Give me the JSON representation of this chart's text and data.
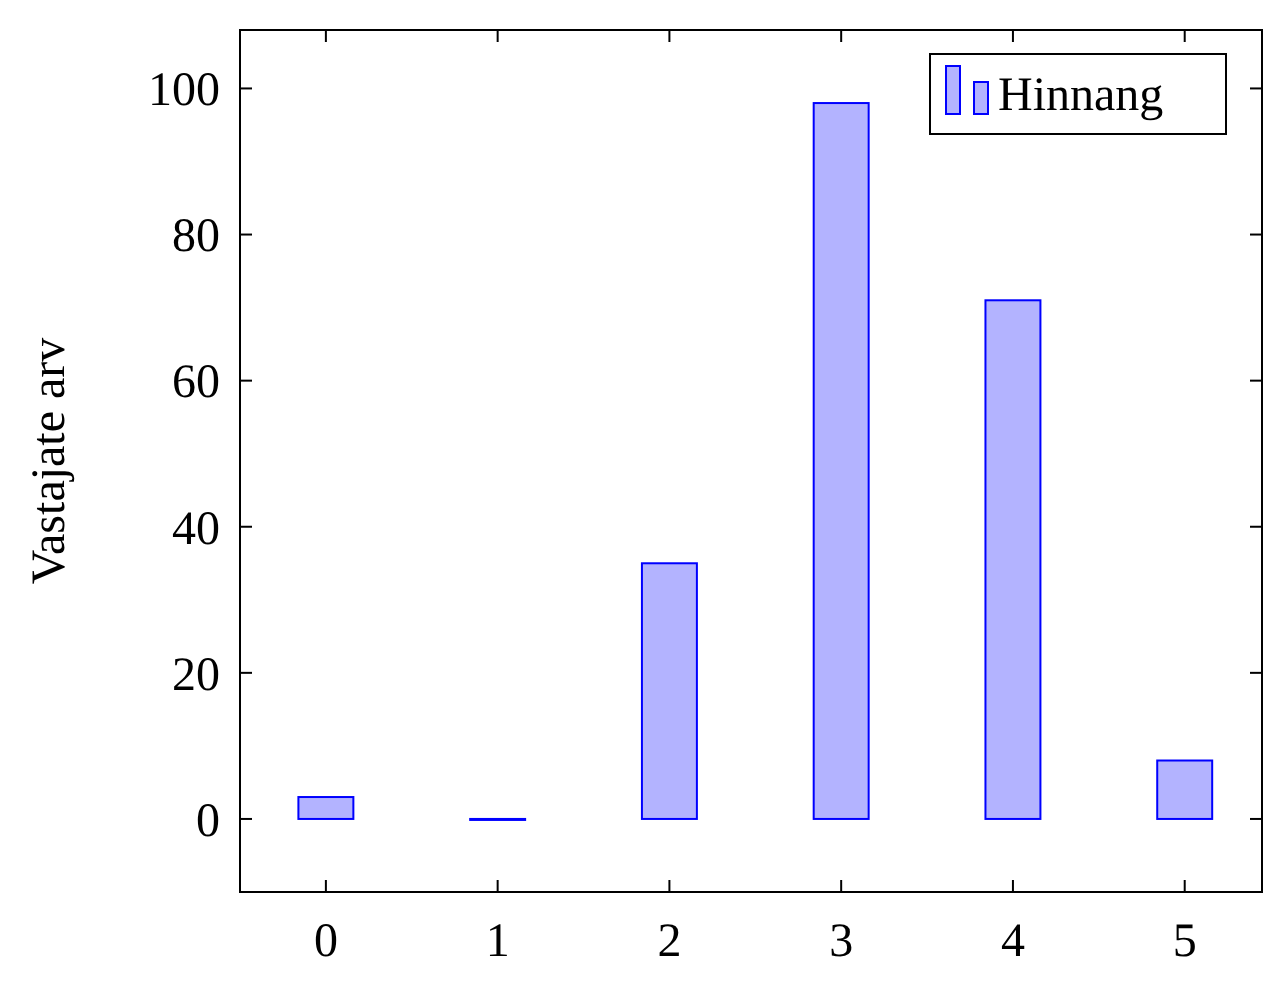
{
  "chart_data": {
    "type": "bar",
    "ylabel": "Vastajate arv",
    "x": [
      0,
      1,
      2,
      3,
      4,
      5
    ],
    "series": [
      {
        "name": "Hinnang",
        "color": "#b3b3ff",
        "values": [
          3,
          0,
          35,
          98,
          71,
          8
        ]
      }
    ],
    "xlim": [
      -0.5,
      5.45
    ],
    "xticks": [
      0,
      1,
      2,
      3,
      4,
      5
    ],
    "ylim": [
      -10,
      108
    ],
    "yticks": [
      0,
      20,
      40,
      60,
      80,
      100
    ],
    "grid": false,
    "legend": "top right"
  }
}
